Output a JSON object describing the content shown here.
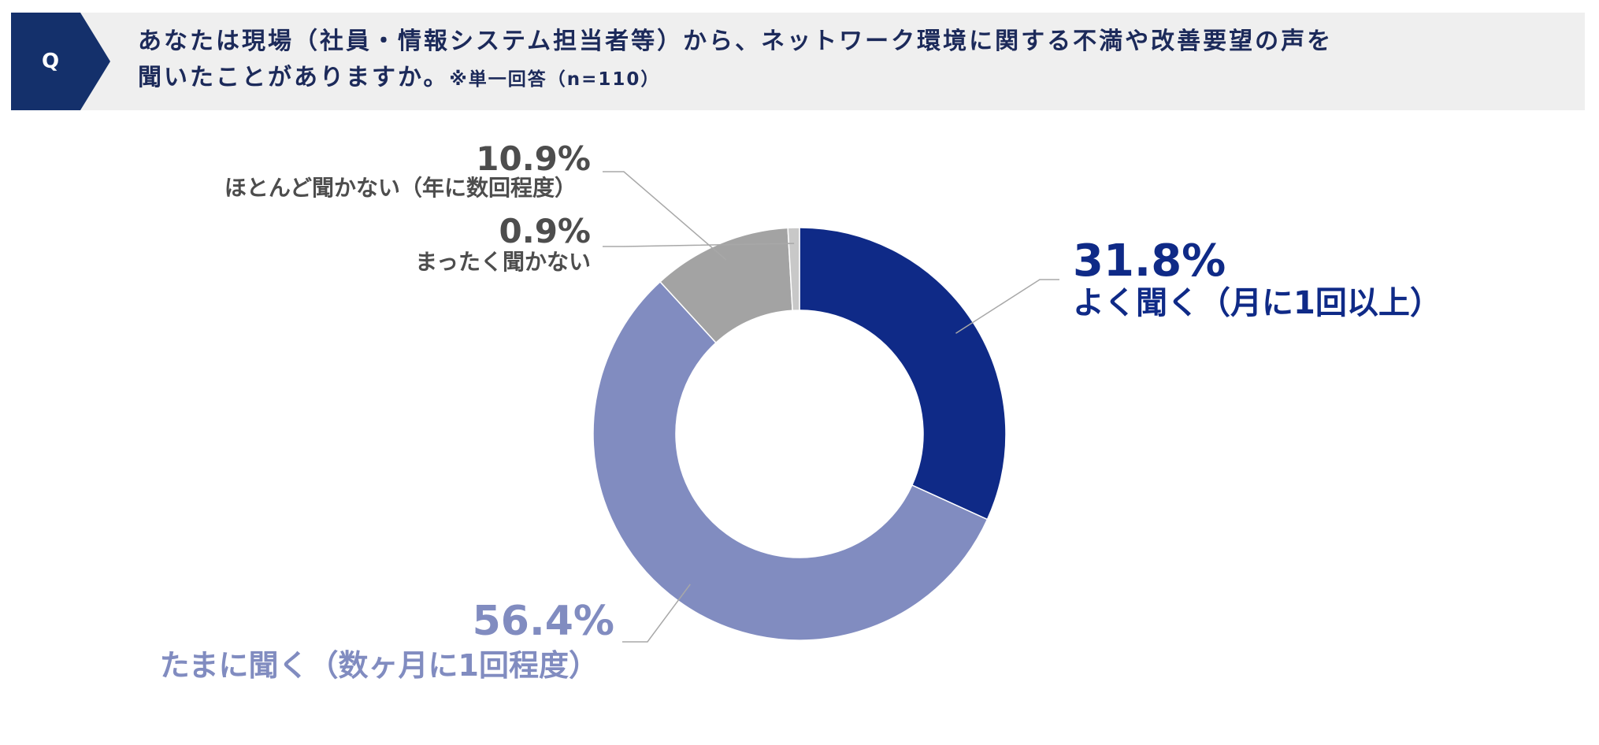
{
  "question": {
    "badge": "Q",
    "line1": "あなたは現場（社員・情報システム担当者等）から、ネットワーク環境に関する不満や改善要望の声を",
    "line2": "聞いたことがありますか。",
    "note": "※単一回答（n=110）"
  },
  "colors": {
    "badge": "#14306b",
    "banner": "#efefef",
    "question_text": "#1c2a5a"
  },
  "chart_data": {
    "type": "pie",
    "donut": true,
    "start_angle_deg": 0,
    "direction": "clockwise",
    "slices": [
      {
        "label": "よく聞く（月に1回以上）",
        "pct_label": "31.8%",
        "value": 31.8,
        "color": "#0f2a87",
        "label_color": "#0f2a87"
      },
      {
        "label": "たまに聞く（数ヶ月に1回程度）",
        "pct_label": "56.4%",
        "value": 56.4,
        "color": "#818cc0",
        "label_color": "#818cc0"
      },
      {
        "label": "ほとんど聞かない（年に数回程度）",
        "pct_label": "10.9%",
        "value": 10.9,
        "color": "#a3a3a3",
        "label_color": "#4d4d4d"
      },
      {
        "label": "まったく聞かない",
        "pct_label": "0.9%",
        "value": 0.9,
        "color": "#c8c8c8",
        "label_color": "#4d4d4d"
      }
    ]
  }
}
